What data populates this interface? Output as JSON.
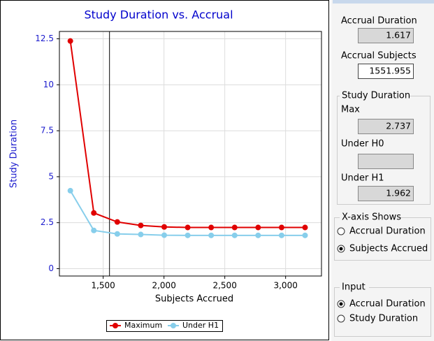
{
  "chart_data": {
    "type": "line",
    "title": "Study Duration vs. Accrual",
    "x_label": "Subjects Accrued",
    "y_label": "Study Duration",
    "x": [
      1230,
      1423,
      1616,
      1809,
      2002,
      2195,
      2388,
      2581,
      2774,
      2967,
      3160
    ],
    "series": [
      {
        "name": "Maximum",
        "color": "#e00000",
        "values": [
          12.38,
          3.03,
          2.54,
          2.35,
          2.27,
          2.24,
          2.24,
          2.24,
          2.24,
          2.24,
          2.24
        ]
      },
      {
        "name": "Under H1",
        "color": "#87ceeb",
        "values": [
          4.24,
          2.08,
          1.89,
          1.86,
          1.82,
          1.81,
          1.81,
          1.81,
          1.81,
          1.81,
          1.81
        ]
      }
    ],
    "xlim": [
      1140,
      3295
    ],
    "ylim": [
      -0.4,
      12.9
    ],
    "xticks": [
      {
        "value": 1500,
        "label": "1,500"
      },
      {
        "value": 2000,
        "label": "2,000"
      },
      {
        "value": 2500,
        "label": "2,500"
      },
      {
        "value": 3000,
        "label": "3,000"
      }
    ],
    "yticks": [
      0,
      2.5,
      5,
      7.5,
      10,
      12.5
    ],
    "grid": true,
    "legend": "bottom"
  },
  "panel": {
    "accrual_duration": {
      "label": "Accrual Duration",
      "value": "1.617"
    },
    "accrual_subjects": {
      "label": "Accrual Subjects",
      "value": 1551.955
    },
    "study_duration": {
      "title": "Study Duration",
      "max_label": "Max",
      "max_value": "2.737",
      "h0_label": "Under H0",
      "h1_label": "Under H1",
      "h1_value": "1.962"
    },
    "x_axis_shows": {
      "title": "X-axis Shows",
      "options": [
        "Accrual Duration",
        "Subjects Accrued"
      ],
      "selected": 1
    },
    "input": {
      "title": "Input",
      "options": [
        "Accrual Duration",
        "Study Duration"
      ],
      "selected": 0
    }
  }
}
